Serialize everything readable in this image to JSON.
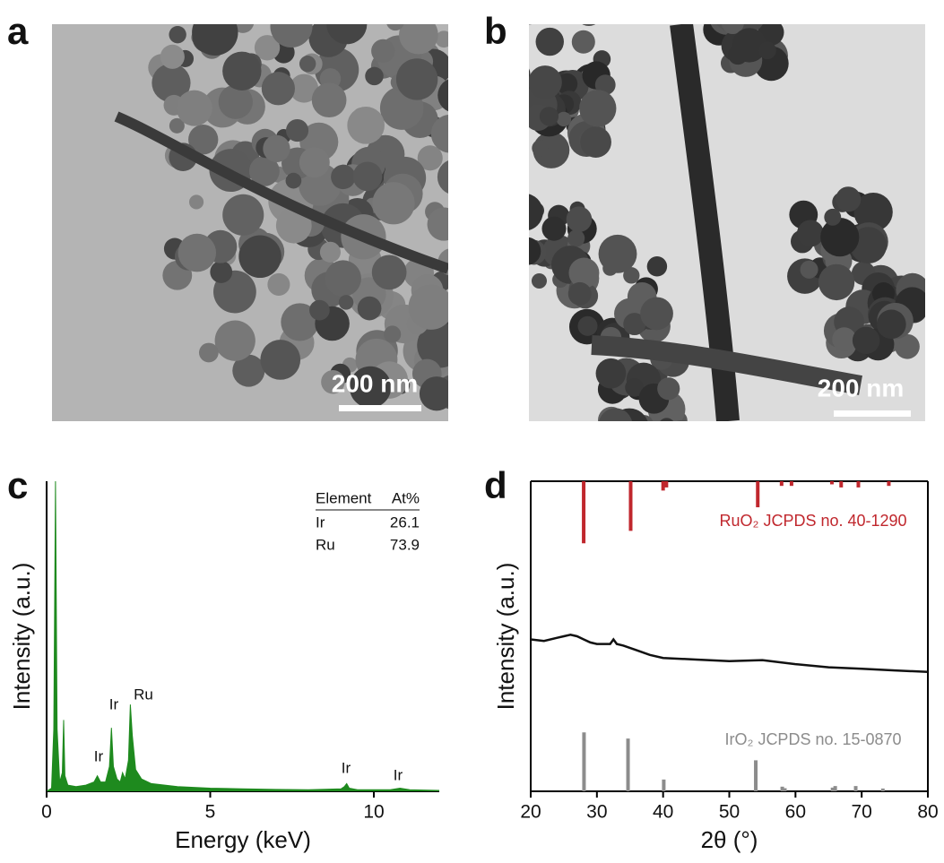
{
  "figure": {
    "panel_labels": [
      "a",
      "b",
      "c",
      "d"
    ],
    "scale_bars": [
      "200 nm",
      "200 nm"
    ]
  },
  "chart_data": [
    {
      "type": "area",
      "x_label": "Energy (keV)",
      "y_label": "Intensity (a.u.)",
      "color": "#1e8a1e",
      "x": [
        0,
        0.15,
        0.22,
        0.27,
        0.32,
        0.4,
        0.48,
        0.52,
        0.56,
        0.65,
        0.9,
        1.2,
        1.45,
        1.55,
        1.65,
        1.8,
        1.92,
        1.98,
        2.04,
        2.15,
        2.25,
        2.32,
        2.4,
        2.5,
        2.56,
        2.62,
        2.72,
        2.9,
        3.2,
        4,
        5,
        6,
        7,
        8,
        9,
        9.1,
        9.17,
        9.25,
        9.5,
        10.5,
        10.8,
        11.1,
        12
      ],
      "values": [
        0,
        1,
        20,
        100,
        20,
        3,
        6,
        23,
        5,
        2,
        1.5,
        2,
        3,
        5,
        3,
        3,
        8,
        20.5,
        8,
        4,
        3,
        6,
        4,
        10,
        28,
        18,
        7,
        4,
        2.5,
        1.5,
        1,
        0.8,
        0.6,
        0.5,
        0.8,
        1.5,
        2.5,
        1,
        0.5,
        0.5,
        1,
        0.5,
        0.3
      ],
      "xlim": [
        0,
        12
      ],
      "xticks": [
        0,
        5,
        10
      ],
      "ylim": [
        0,
        100
      ],
      "annotations": [
        "Ir",
        "Ir",
        "Ru",
        "Ir",
        "Ir"
      ],
      "table": {
        "header": [
          "Element",
          "At%"
        ],
        "rows": [
          [
            "Ir",
            26.1
          ],
          [
            "Ru",
            73.9
          ]
        ]
      }
    },
    {
      "type": "line",
      "x_label": "2θ (°)",
      "y_label": "Intensity (a.u.)",
      "xlim": [
        20,
        80
      ],
      "xticks": [
        20,
        30,
        40,
        50,
        60,
        70,
        80
      ],
      "ylim": [
        0,
        100
      ],
      "frame": true,
      "series": [
        {
          "name": "RuO₂ JCPDS no. 40-1290",
          "type": "stem",
          "orientation": "down",
          "color": "#c0272d",
          "x": [
            28.0,
            35.1,
            40.0,
            40.5,
            54.3,
            57.9,
            59.4,
            65.5,
            66.9,
            69.5,
            74.1
          ],
          "values": [
            20,
            16,
            3,
            2,
            8.4,
            1.5,
            1.5,
            1,
            2,
            2,
            1.5
          ]
        },
        {
          "type": "line",
          "color": "#111111",
          "x": [
            20,
            22,
            24,
            25,
            26,
            27,
            28,
            29,
            30,
            32,
            32.5,
            33,
            34,
            36,
            38,
            40,
            45,
            50,
            55,
            60,
            65,
            70,
            75,
            80
          ],
          "values": [
            49,
            48.5,
            49.5,
            50,
            50.5,
            50,
            49,
            48,
            47.5,
            47.5,
            49,
            47.5,
            47,
            45.5,
            44,
            43,
            42.5,
            42,
            42.3,
            41,
            40,
            39.5,
            39,
            38.5
          ]
        },
        {
          "name": "IrO₂ JCPDS no. 15-0870",
          "type": "stem",
          "orientation": "up",
          "color": "#8c8c8c",
          "x": [
            28.05,
            34.7,
            40.1,
            54.0,
            58.0,
            58.4,
            65.6,
            66.0,
            69.1,
            73.2
          ],
          "values": [
            19,
            17,
            3.8,
            10,
            1.5,
            1,
            1.2,
            1.7,
            1.7,
            0.9
          ]
        }
      ]
    }
  ]
}
